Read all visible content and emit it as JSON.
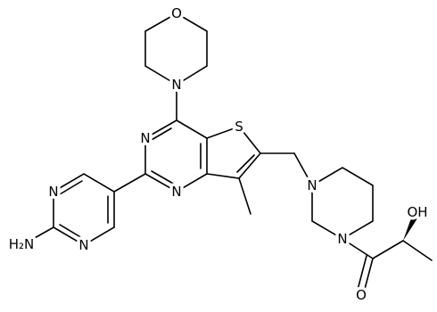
{
  "atoms": {
    "morpholine_o": "O",
    "morpholine_n": "N",
    "thiophene_s": "S",
    "pyrimidine_n3": "N",
    "pyrimidine_n1": "N",
    "amino_pyrimidine_n3": "N",
    "amino_pyrimidine_n1": "N",
    "amine": "H₂N",
    "piperazine_n4": "N",
    "piperazine_n1": "N",
    "carbonyl_o": "O",
    "hydroxyl": "OH"
  }
}
